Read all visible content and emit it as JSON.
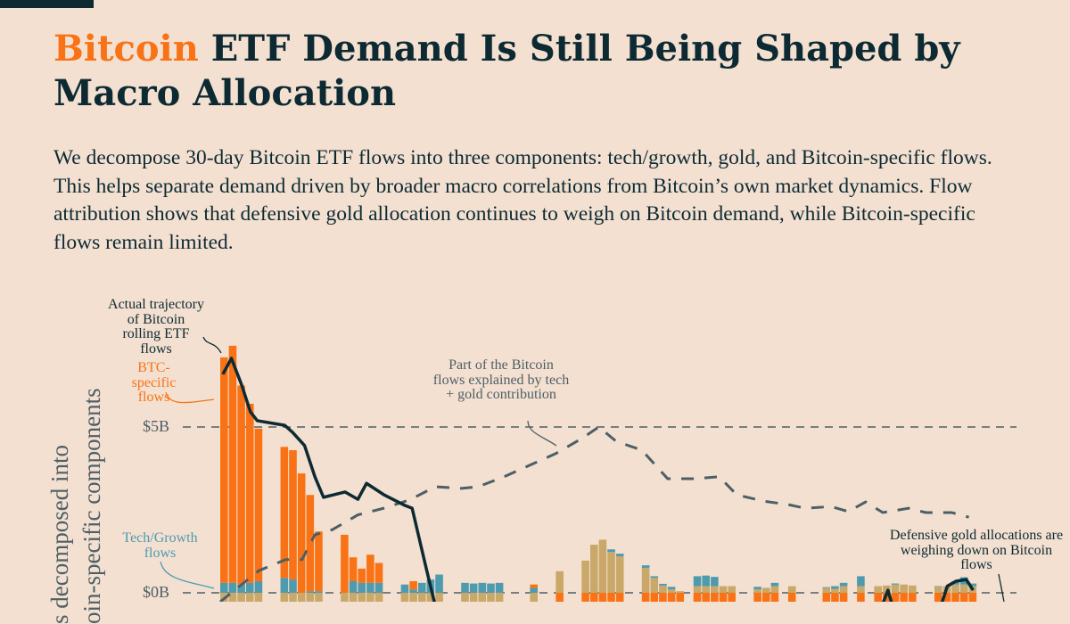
{
  "title": {
    "highlight": "Bitcoin",
    "rest": " ETF Demand Is Still Being Shaped by Macro Allocation"
  },
  "description": "We decompose 30-day Bitcoin ETF flows into three components: tech/growth, gold, and Bitcoin-specific flows. This helps separate demand driven by broader macro correlations from Bitcoin’s own market dynamics. Flow attribution shows that defensive gold allocation continues to weigh on Bitcoin demand, while Bitcoin-specific flows remain limited.",
  "colors": {
    "background": "#f3e0d0",
    "btc": "#f97316",
    "tech": "#4e9bb0",
    "gold": "#c9a86a",
    "actual": "#0d2a33",
    "explained": "#4d5f66"
  },
  "chart_data": {
    "type": "bar",
    "stacked": true,
    "ylabel_visible_fragments": [
      "s decomposed into",
      "oin-specific components"
    ],
    "y_ticks": [
      "$5B",
      "$0B"
    ],
    "y_tick_values": [
      5,
      0
    ],
    "grid": "dashed horizontal at ticks",
    "units": "$B",
    "bars_note": "each bar: [slot, btc_specific, tech_growth, gold]",
    "bars": [
      [
        0,
        6.8,
        0.3,
        -1
      ],
      [
        1,
        7.15,
        0.3,
        -1
      ],
      [
        2,
        6.0,
        0.25,
        -1
      ],
      [
        3,
        5.4,
        0.3,
        -1
      ],
      [
        4,
        4.6,
        0.35,
        -1
      ],
      [
        7,
        3.95,
        0.45,
        -1
      ],
      [
        8,
        3.9,
        0.4,
        -1
      ],
      [
        9,
        3.6,
        0,
        -1
      ],
      [
        10,
        2.9,
        0.05,
        -1
      ],
      [
        11,
        1.8,
        0.05,
        -1
      ],
      [
        14,
        1.75,
        0,
        -1
      ],
      [
        15,
        0.72,
        0.35,
        -1
      ],
      [
        16,
        0.43,
        0.3,
        -1
      ],
      [
        17,
        0.85,
        0.3,
        -1
      ],
      [
        18,
        0.6,
        0.3,
        -1
      ],
      [
        21,
        0,
        0.25,
        -1
      ],
      [
        22,
        0.25,
        0.1,
        -1
      ],
      [
        23,
        0,
        0.3,
        -1
      ],
      [
        24,
        0,
        0.4,
        -1
      ],
      [
        25,
        0,
        0.55,
        -1
      ],
      [
        28,
        0,
        0.3,
        -1
      ],
      [
        29,
        0,
        0.28,
        -1
      ],
      [
        30,
        0,
        0.3,
        -1
      ],
      [
        31,
        0,
        0.28,
        -1
      ],
      [
        32,
        0,
        0.3,
        -1
      ],
      [
        36,
        0.1,
        0.15,
        -1
      ],
      [
        39,
        -1,
        0,
        0.65
      ],
      [
        42,
        -1,
        0,
        0.97
      ],
      [
        43,
        -1,
        0,
        1.45
      ],
      [
        44,
        -1,
        0,
        1.6
      ],
      [
        45,
        -1,
        0.08,
        1.23
      ],
      [
        46,
        -1,
        0.08,
        1.1
      ],
      [
        49,
        -1,
        0.08,
        0.75
      ],
      [
        50,
        -1,
        0.05,
        0.45
      ],
      [
        51,
        -1,
        0.05,
        0.22
      ],
      [
        52,
        -1,
        0.08,
        0.1
      ],
      [
        53,
        -1,
        0,
        0.05
      ],
      [
        55,
        -0.3,
        0.3,
        0.2
      ],
      [
        56,
        -0.3,
        0.32,
        0.2
      ],
      [
        57,
        -0.3,
        0.28,
        0.2
      ],
      [
        58,
        -0.3,
        0,
        0.2
      ],
      [
        59,
        -0.3,
        0,
        0.2
      ],
      [
        62,
        -0.3,
        0.08,
        0.1
      ],
      [
        63,
        -0.3,
        0,
        0.15
      ],
      [
        64,
        -0.3,
        0.1,
        0.2
      ],
      [
        66,
        -0.3,
        0,
        0.2
      ],
      [
        70,
        -0.3,
        0.02,
        0.15
      ],
      [
        71,
        -0.3,
        0.08,
        0.12
      ],
      [
        72,
        -0.3,
        0.1,
        0.2
      ],
      [
        74,
        -0.3,
        0.3,
        0.2
      ],
      [
        76,
        -0.3,
        0,
        0.2
      ],
      [
        77,
        -0.3,
        0,
        0.22
      ],
      [
        78,
        -0.3,
        0.03,
        0.25
      ],
      [
        79,
        -0.3,
        0,
        0.25
      ],
      [
        80,
        -0.3,
        0,
        0.22
      ],
      [
        83,
        -0.3,
        0.02,
        0.18
      ],
      [
        84,
        -0.3,
        0,
        0.2
      ],
      [
        85,
        -0.3,
        0.1,
        0.25
      ],
      [
        86,
        -0.3,
        0.22,
        0.25
      ],
      [
        87,
        -0.3,
        0.08,
        0.2
      ]
    ],
    "actual_line": [
      [
        0.3,
        6.59
      ],
      [
        1.3,
        7.07
      ],
      [
        2.5,
        6.26
      ],
      [
        3.5,
        5.46
      ],
      [
        4.3,
        5.19
      ],
      [
        7.5,
        5.05
      ],
      [
        8.4,
        4.84
      ],
      [
        9.8,
        4.44
      ],
      [
        11,
        3.5
      ],
      [
        12,
        2.88
      ],
      [
        14.5,
        3.04
      ],
      [
        16,
        2.82
      ],
      [
        17,
        3.3
      ],
      [
        19,
        2.96
      ],
      [
        21.5,
        2.63
      ],
      [
        22.3,
        2.55
      ],
      [
        24,
        0.67
      ],
      [
        25,
        -0.4
      ],
      [
        26,
        -1
      ]
    ],
    "actual_line_right": [
      [
        76,
        -1
      ],
      [
        77.6,
        0.08
      ],
      [
        78.8,
        -1
      ],
      [
        83,
        -1
      ],
      [
        84.5,
        0.2
      ],
      [
        85.5,
        0.35
      ],
      [
        86.7,
        0.4
      ],
      [
        87.5,
        0.08
      ]
    ],
    "explained_line": [
      [
        0,
        -0.27
      ],
      [
        1.3,
        0
      ],
      [
        4.5,
        0.67
      ],
      [
        7.6,
        1.0
      ],
      [
        9.5,
        1.0
      ],
      [
        11,
        1.75
      ],
      [
        13,
        1.9
      ],
      [
        16,
        2.35
      ],
      [
        19,
        2.55
      ],
      [
        22,
        2.8
      ],
      [
        25,
        3.2
      ],
      [
        28,
        3.15
      ],
      [
        30,
        3.2
      ],
      [
        33,
        3.5
      ],
      [
        36,
        3.85
      ],
      [
        39,
        4.2
      ],
      [
        42,
        4.65
      ],
      [
        44,
        5.0
      ],
      [
        46,
        4.57
      ],
      [
        49,
        4.3
      ],
      [
        52,
        3.44
      ],
      [
        55,
        3.44
      ],
      [
        58,
        3.5
      ],
      [
        60,
        2.96
      ],
      [
        63,
        2.77
      ],
      [
        66,
        2.66
      ],
      [
        68,
        2.55
      ],
      [
        71,
        2.6
      ],
      [
        73,
        2.45
      ],
      [
        75,
        2.74
      ],
      [
        77,
        2.42
      ],
      [
        80,
        2.55
      ],
      [
        82,
        2.42
      ],
      [
        85,
        2.42
      ],
      [
        87,
        2.28
      ]
    ],
    "annotations": {
      "actual": "Actual trajectory of Bitcoin rolling ETF flows",
      "btc": "BTC-specific flows",
      "tech": "Tech/Growth flows",
      "explained": "Part of the Bitcoin flows explained by tech + gold contribution",
      "gold": "Defensive gold allocations are weighing down on Bitcoin flows"
    }
  }
}
